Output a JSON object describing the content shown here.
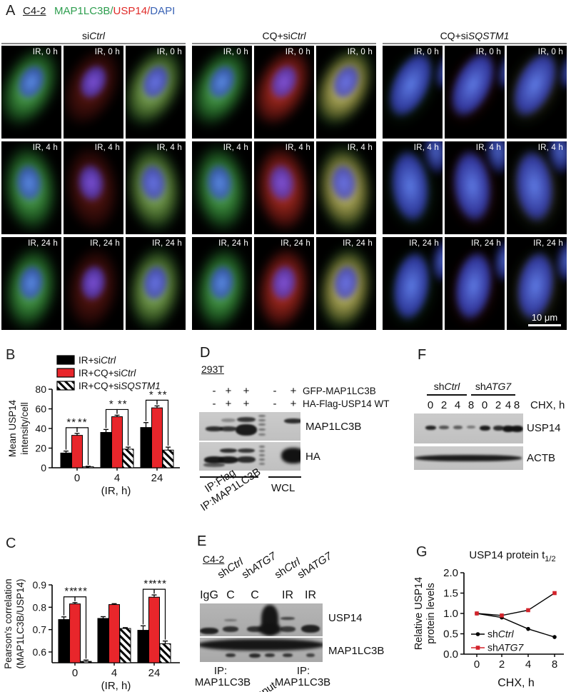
{
  "panel_a": {
    "label": "A",
    "cell_line": "C4-2",
    "stain_parts": [
      {
        "t": "MAP1LC3B",
        "color": "#2e9e4f"
      },
      {
        "t": "/",
        "color": "#2e9e4f"
      },
      {
        "t": "USP14",
        "color": "#e02b28"
      },
      {
        "t": "/",
        "color": "#e02b28"
      },
      {
        "t": "DAPI",
        "color": "#3a63b5"
      }
    ],
    "groups": [
      {
        "label_parts": [
          {
            "t": "si"
          },
          {
            "t": "Ctrl",
            "i": true
          }
        ]
      },
      {
        "label_parts": [
          {
            "t": "CQ+si"
          },
          {
            "t": "Ctrl",
            "i": true
          }
        ]
      },
      {
        "label_parts": [
          {
            "t": "CQ+si"
          },
          {
            "t": "SQSTM1",
            "i": true
          }
        ]
      }
    ],
    "timepoints": [
      "IR, 0 h",
      "IR, 4 h",
      "IR, 24 h"
    ],
    "channels": [
      "MAP1LC3B",
      "USP14",
      "merge"
    ],
    "scale_bar": "10 μm"
  },
  "panel_b_label": "B",
  "panel_c_label": "C",
  "panel_g_label": "G",
  "chart_data": [
    {
      "id": "B",
      "type": "bar",
      "ylabel_lines": [
        "Mean USP14",
        "intensity/cell"
      ],
      "xlabel": "(IR, h)",
      "categories": [
        "0",
        "4",
        "24"
      ],
      "ylim": [
        0,
        80
      ],
      "yticks": [
        0,
        20,
        40,
        60,
        80
      ],
      "legend_position": "top",
      "series": [
        {
          "name_parts": [
            {
              "t": "IR+si"
            },
            {
              "t": "Ctrl",
              "i": true
            }
          ],
          "fill": "#000000",
          "values": [
            15,
            36,
            41
          ],
          "errors": [
            2,
            3,
            5
          ]
        },
        {
          "name_parts": [
            {
              "t": "IR+CQ+si"
            },
            {
              "t": "Ctrl",
              "i": true
            }
          ],
          "fill": "#e8262b",
          "values": [
            33,
            52,
            61
          ],
          "errors": [
            2,
            1.5,
            2
          ]
        },
        {
          "name_parts": [
            {
              "t": "IR+CQ+si"
            },
            {
              "t": "SQSTM1",
              "i": true
            }
          ],
          "fill": "hatch",
          "values": [
            1,
            19,
            18
          ],
          "errors": [
            0.5,
            2,
            3
          ]
        }
      ],
      "significance": [
        {
          "cat": 0,
          "brackets": [
            {
              "a": 0,
              "b": 1,
              "label": "**"
            },
            {
              "a": 1,
              "b": 2,
              "label": "**"
            }
          ]
        },
        {
          "cat": 1,
          "brackets": [
            {
              "a": 0,
              "b": 1,
              "label": "*"
            },
            {
              "a": 1,
              "b": 2,
              "label": "**"
            }
          ]
        },
        {
          "cat": 2,
          "brackets": [
            {
              "a": 0,
              "b": 1,
              "label": "*"
            },
            {
              "a": 1,
              "b": 2,
              "label": "**"
            }
          ]
        }
      ]
    },
    {
      "id": "C",
      "type": "bar",
      "ylabel_lines": [
        "Pearson's correlation",
        "(MAP1LC3B/USP14)"
      ],
      "xlabel": "(IR, h)",
      "categories": [
        "0",
        "4",
        "24"
      ],
      "ylim": [
        0.55,
        0.9
      ],
      "yticks": [
        0.6,
        0.7,
        0.8,
        0.9
      ],
      "legend_position": "none",
      "series": [
        {
          "fill": "#000000",
          "values": [
            0.745,
            0.75,
            0.697
          ],
          "errors": [
            0.012,
            0.008,
            0.02
          ]
        },
        {
          "fill": "#e8262b",
          "values": [
            0.815,
            0.812,
            0.845
          ],
          "errors": [
            0.006,
            0.004,
            0.01
          ]
        },
        {
          "fill": "hatch",
          "values": [
            0.558,
            0.705,
            0.637
          ],
          "errors": [
            0.006,
            0.004,
            0.012
          ]
        }
      ],
      "significance": [
        {
          "cat": 0,
          "brackets": [
            {
              "a": 0,
              "b": 1,
              "label": "**"
            },
            {
              "a": 1,
              "b": 2,
              "label": "***"
            }
          ]
        },
        {
          "cat": 2,
          "brackets": [
            {
              "a": 0,
              "b": 1,
              "label": "**"
            },
            {
              "a": 1,
              "b": 2,
              "label": "***"
            }
          ]
        }
      ]
    },
    {
      "id": "G",
      "type": "line",
      "title": "USP14 protein t",
      "title_sub": "1/2",
      "ylabel_lines": [
        "Relative USP14",
        "protein levels"
      ],
      "xlabel": "CHX, h",
      "x_labels": [
        "0",
        "2",
        "4",
        "8"
      ],
      "ylim": [
        0,
        2
      ],
      "yticks": [
        "0.0",
        "0.5",
        "1.0",
        "1.5",
        "2.0"
      ],
      "legend_position": "inside-bottom-left",
      "series": [
        {
          "name_parts": [
            {
              "t": "sh"
            },
            {
              "t": "Ctrl",
              "i": true
            }
          ],
          "color": "#000000",
          "marker": "circle",
          "values": [
            1.0,
            0.9,
            0.62,
            0.42
          ]
        },
        {
          "name_parts": [
            {
              "t": "sh"
            },
            {
              "t": "ATG7",
              "i": true
            }
          ],
          "color": "#d3242c",
          "marker": "square",
          "values": [
            1.0,
            0.95,
            1.08,
            1.5
          ]
        }
      ]
    }
  ],
  "panel_d": {
    "label": "D",
    "cell_line": "293T",
    "construct_rows": [
      {
        "signs": [
          "-",
          "+",
          "+",
          "-",
          "+"
        ],
        "name": "GFP-MAP1LC3B"
      },
      {
        "signs": [
          "-",
          "+",
          "+",
          "-",
          "+"
        ],
        "name": "HA-Flag-USP14 WT"
      }
    ],
    "blot_labels": [
      "MAP1LC3B",
      "HA"
    ],
    "ip_labels": [
      "IP:Flag",
      "IP:MAP1LC3B"
    ],
    "wcl_label": "WCL"
  },
  "panel_e": {
    "label": "E",
    "cell_line": "C4-2",
    "top_labels": [
      [
        {
          "t": "sh"
        },
        {
          "t": "Ctrl",
          "i": true
        }
      ],
      [
        {
          "t": "sh"
        },
        {
          "t": "ATG7",
          "i": true
        }
      ],
      [
        {
          "t": "sh"
        },
        {
          "t": "Ctrl",
          "i": true
        }
      ],
      [
        {
          "t": "sh"
        },
        {
          "t": "ATG7",
          "i": true
        }
      ]
    ],
    "lane_labels": [
      "IgG",
      "C",
      "C",
      "IR",
      "IR"
    ],
    "blot_labels": [
      "USP14",
      "MAP1LC3B"
    ],
    "bottom_left": [
      "IP:",
      "MAP1LC3B"
    ],
    "bottom_mid": "Input",
    "bottom_right": [
      "IP:",
      "MAP1LC3B"
    ]
  },
  "panel_f": {
    "label": "F",
    "group_labels": [
      [
        {
          "t": "sh"
        },
        {
          "t": "Ctrl",
          "i": true
        }
      ],
      [
        {
          "t": "sh"
        },
        {
          "t": "ATG7",
          "i": true
        }
      ]
    ],
    "lane_numbers": [
      "0",
      "2",
      "4",
      "8",
      "0",
      "2",
      "4",
      "8"
    ],
    "time_label": "CHX, h",
    "blot_labels": [
      "USP14",
      "ACTB"
    ]
  }
}
